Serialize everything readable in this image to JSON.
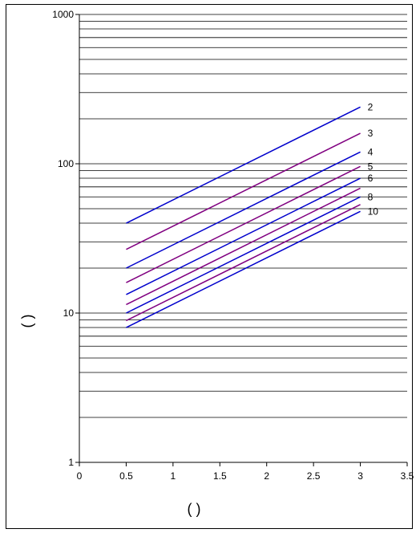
{
  "chart_data": {
    "type": "line",
    "title": "",
    "xlabel": "(   )",
    "ylabel": "(   )",
    "xlim": [
      0,
      3.5
    ],
    "ylim": [
      1,
      1000
    ],
    "y_scale": "log",
    "grid": "horizontal minor and major",
    "x_ticks": [
      "0",
      "0.5",
      "1",
      "1.5",
      "2",
      "2.5",
      "3",
      "3.5"
    ],
    "y_ticks": [
      "1",
      "10",
      "100",
      "1000"
    ],
    "series": [
      {
        "name": "2",
        "color": "#0000cc",
        "x": [
          0.5,
          3
        ],
        "y": [
          40,
          240
        ]
      },
      {
        "name": "3",
        "color": "#800080",
        "x": [
          0.5,
          3
        ],
        "y": [
          26.7,
          160
        ]
      },
      {
        "name": "4",
        "color": "#0000cc",
        "x": [
          0.5,
          3
        ],
        "y": [
          20,
          120
        ]
      },
      {
        "name": "5",
        "color": "#800080",
        "x": [
          0.5,
          3
        ],
        "y": [
          16,
          96
        ]
      },
      {
        "name": "6",
        "color": "#0000cc",
        "x": [
          0.5,
          3
        ],
        "y": [
          13.3,
          80
        ]
      },
      {
        "name": "",
        "color": "#800080",
        "x": [
          0.5,
          3
        ],
        "y": [
          11.4,
          68.6
        ]
      },
      {
        "name": "8",
        "color": "#0000cc",
        "x": [
          0.5,
          3
        ],
        "y": [
          10,
          60
        ]
      },
      {
        "name": "",
        "color": "#800080",
        "x": [
          0.5,
          3
        ],
        "y": [
          8.9,
          53.3
        ]
      },
      {
        "name": "10",
        "color": "#0000cc",
        "x": [
          0.5,
          3
        ],
        "y": [
          8,
          48
        ]
      }
    ]
  }
}
